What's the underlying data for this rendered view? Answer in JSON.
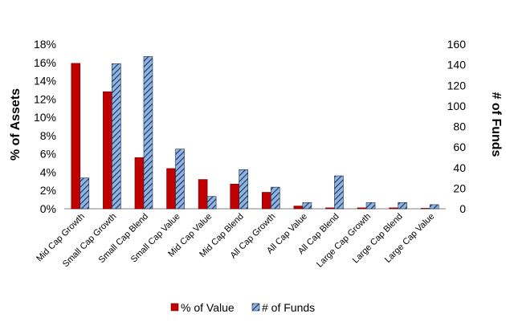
{
  "chart_data": {
    "type": "bar",
    "title": "",
    "categories": [
      "Mid Cap Growth",
      "Small Cap Growth",
      "Small Cap Blend",
      "Small Cap Value",
      "Mid Cap Value",
      "Mid Cap Blend",
      "All Cap Growth",
      "All Cap Value",
      "All Cap Blend",
      "Large Cap Growth",
      "Large Cap Blend",
      "Large Cap Value"
    ],
    "series": [
      {
        "name": "% of Value",
        "axis": "left",
        "color": "#c00000",
        "values": [
          15.9,
          12.8,
          5.6,
          4.4,
          3.2,
          2.7,
          1.8,
          0.3,
          0.1,
          0.1,
          0.1,
          0.05
        ]
      },
      {
        "name": "# of Funds",
        "axis": "right",
        "color": "#8db4e2",
        "pattern": "diagonal-hatch",
        "values": [
          30,
          141,
          148,
          58,
          12,
          38,
          21,
          6,
          32,
          6,
          6,
          4
        ]
      }
    ],
    "ylabel": "% of Assets",
    "ylabel_right": "# of Funds",
    "ylim": [
      0,
      18
    ],
    "ylim_right": [
      0,
      160
    ],
    "y_ticks": [
      "0%",
      "2%",
      "4%",
      "6%",
      "8%",
      "10%",
      "12%",
      "14%",
      "16%",
      "18%"
    ],
    "y_ticks_right": [
      "0",
      "20",
      "40",
      "60",
      "80",
      "100",
      "120",
      "140",
      "160"
    ],
    "grid": false,
    "legend_position": "bottom"
  }
}
